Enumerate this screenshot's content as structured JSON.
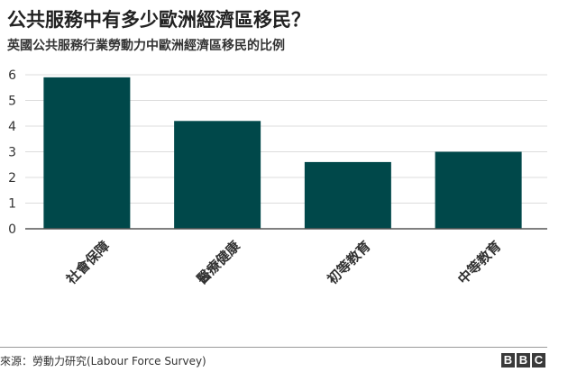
{
  "header": {
    "title": "公共服務中有多少歐洲經濟區移民？",
    "subtitle": "英國公共服務行業勞動力中歐洲經濟區移民的比例"
  },
  "footer": {
    "source": "來源：勞動力研究(Labour Force Survey)",
    "logo_letters": [
      "B",
      "B",
      "C"
    ]
  },
  "colors": {
    "bar": "#00484a",
    "grid": "#dcdcdc",
    "axis": "#555555",
    "text": "#333333"
  },
  "chart_data": {
    "type": "bar",
    "title": "公共服務中有多少歐洲經濟區移民？",
    "subtitle": "英國公共服務行業勞動力中歐洲經濟區移民的比例",
    "categories": [
      "社會保障",
      "醫療健康",
      "初等教育",
      "中等教育"
    ],
    "values": [
      5.9,
      4.2,
      2.6,
      3.0
    ],
    "yticks": [
      "0",
      "1",
      "2",
      "3",
      "4",
      "5",
      "6"
    ],
    "ylim": [
      0,
      6
    ],
    "grid": true,
    "xlabel": "",
    "ylabel": ""
  }
}
